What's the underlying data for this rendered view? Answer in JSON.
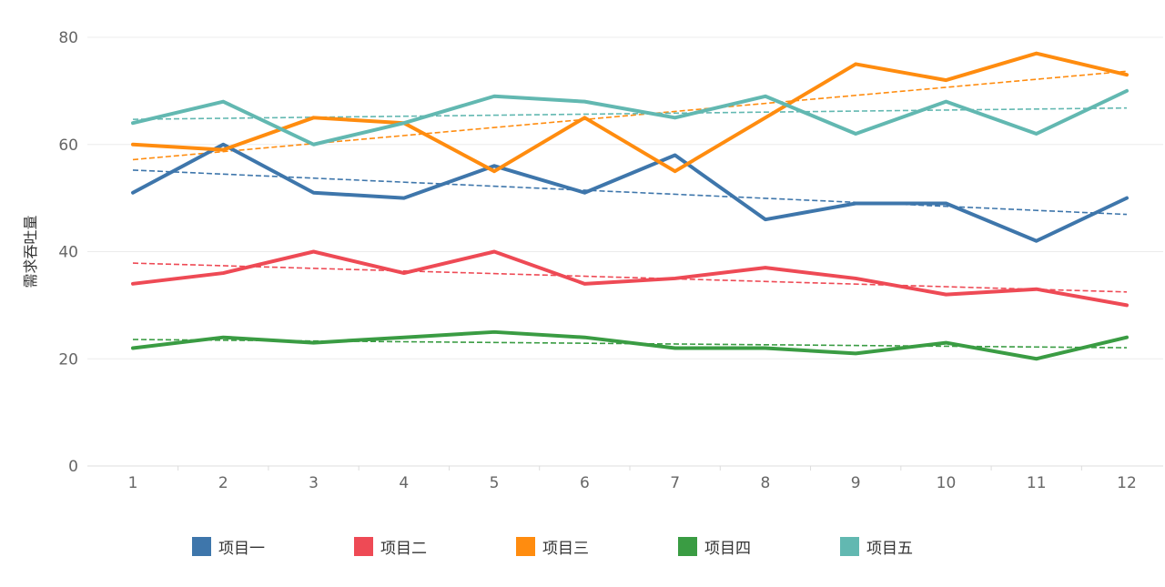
{
  "chart_data": {
    "type": "line",
    "ylabel": "需求吞吐量",
    "xlabel": "",
    "x": [
      1,
      2,
      3,
      4,
      5,
      6,
      7,
      8,
      9,
      10,
      11,
      12
    ],
    "ylim": [
      0,
      80
    ],
    "yticks": [
      0,
      20,
      40,
      60,
      80
    ],
    "grid": true,
    "trendlines": true,
    "legend_position": "bottom",
    "series": [
      {
        "name": "项目一",
        "color": "#3E76AB",
        "values": [
          51,
          60,
          51,
          50,
          56,
          51,
          58,
          46,
          49,
          49,
          42,
          50
        ]
      },
      {
        "name": "项目二",
        "color": "#EE4A55",
        "values": [
          34,
          36,
          40,
          36,
          40,
          34,
          35,
          37,
          35,
          32,
          33,
          30
        ]
      },
      {
        "name": "项目三",
        "color": "#FF8C0F",
        "values": [
          60,
          59,
          65,
          64,
          55,
          65,
          55,
          65,
          75,
          72,
          77,
          73
        ]
      },
      {
        "name": "项目四",
        "color": "#3A9C43",
        "values": [
          22,
          24,
          23,
          24,
          25,
          24,
          22,
          22,
          21,
          23,
          20,
          24
        ]
      },
      {
        "name": "项目五",
        "color": "#62B8B1",
        "values": [
          64,
          68,
          60,
          64,
          69,
          68,
          65,
          69,
          62,
          68,
          62,
          70
        ]
      }
    ]
  }
}
